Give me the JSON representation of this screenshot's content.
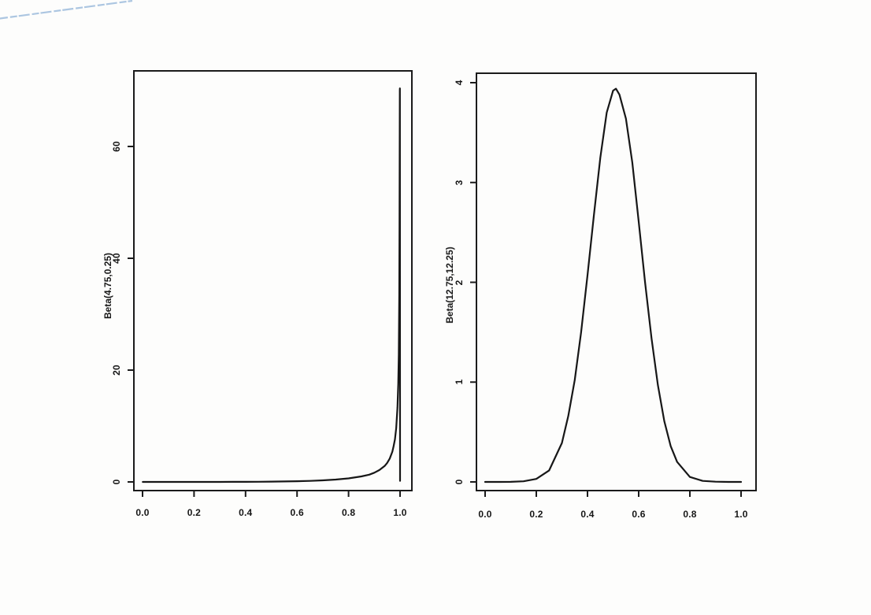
{
  "page": {
    "background": "#fdfdfc",
    "artifact": {
      "name": "blue-diagonal-scan-line",
      "color": "#92b4d9"
    }
  },
  "chart_data": [
    {
      "type": "line",
      "title": "",
      "xlabel": "",
      "ylabel": "Beta(4.75,0.25)",
      "xlim": [
        0,
        1
      ],
      "ylim": [
        0,
        70
      ],
      "grid": false,
      "legend": "none",
      "xticks": {
        "values": [
          0,
          0.2,
          0.4,
          0.6,
          0.8,
          1.0
        ],
        "labels": [
          "0.0",
          "0.2",
          "0.4",
          "0.6",
          "0.8",
          "1.0"
        ]
      },
      "yticks": {
        "values": [
          0,
          20,
          40,
          60
        ],
        "labels": [
          "0",
          "20",
          "40",
          "60"
        ]
      },
      "line_color": "#171717",
      "series": [
        {
          "name": "beta-4.75-0.25-density",
          "x": [
            0.001,
            0.05,
            0.1,
            0.15,
            0.2,
            0.25,
            0.3,
            0.35,
            0.4,
            0.45,
            0.5,
            0.55,
            0.6,
            0.65,
            0.7,
            0.75,
            0.8,
            0.85,
            0.88,
            0.9,
            0.92,
            0.94,
            0.95,
            0.96,
            0.97,
            0.975,
            0.98,
            0.985,
            0.99,
            0.993,
            0.995,
            0.997,
            0.998,
            0.999,
            0.9995,
            1.0
          ],
          "y": [
            0,
            0,
            0,
            0.001,
            0.001,
            0.003,
            0.006,
            0.012,
            0.021,
            0.034,
            0.055,
            0.085,
            0.128,
            0.19,
            0.282,
            0.42,
            0.63,
            0.98,
            1.3,
            1.65,
            2.12,
            2.85,
            3.4,
            4.19,
            5.41,
            6.4,
            7.6,
            9.6,
            13.3,
            17.5,
            22.8,
            33.6,
            45.8,
            70.0,
            70.4,
            0.2
          ]
        }
      ]
    },
    {
      "type": "line",
      "title": "",
      "xlabel": "",
      "ylabel": "Beta(12.75,12.25)",
      "xlim": [
        0,
        1
      ],
      "ylim": [
        0,
        4
      ],
      "grid": false,
      "legend": "none",
      "xticks": {
        "values": [
          0,
          0.2,
          0.4,
          0.6,
          0.8,
          1.0
        ],
        "labels": [
          "0.0",
          "0.2",
          "0.4",
          "0.6",
          "0.8",
          "1.0"
        ]
      },
      "yticks": {
        "values": [
          0,
          1,
          2,
          3,
          4
        ],
        "labels": [
          "0",
          "1",
          "2",
          "3",
          "4"
        ]
      },
      "line_color": "#171717",
      "series": [
        {
          "name": "beta-12.75-12.25-density",
          "x": [
            0,
            0.05,
            0.1,
            0.15,
            0.2,
            0.25,
            0.3,
            0.325,
            0.35,
            0.375,
            0.4,
            0.425,
            0.45,
            0.475,
            0.5,
            0.511,
            0.525,
            0.55,
            0.575,
            0.6,
            0.625,
            0.65,
            0.675,
            0.7,
            0.725,
            0.75,
            0.8,
            0.85,
            0.9,
            0.95,
            1.0
          ],
          "y": [
            0,
            0,
            0.001,
            0.006,
            0.03,
            0.115,
            0.39,
            0.66,
            1.02,
            1.5,
            2.07,
            2.67,
            3.25,
            3.7,
            3.92,
            3.94,
            3.88,
            3.64,
            3.2,
            2.61,
            2.0,
            1.44,
            0.97,
            0.61,
            0.36,
            0.2,
            0.05,
            0.01,
            0.002,
            0,
            0
          ]
        }
      ]
    }
  ]
}
